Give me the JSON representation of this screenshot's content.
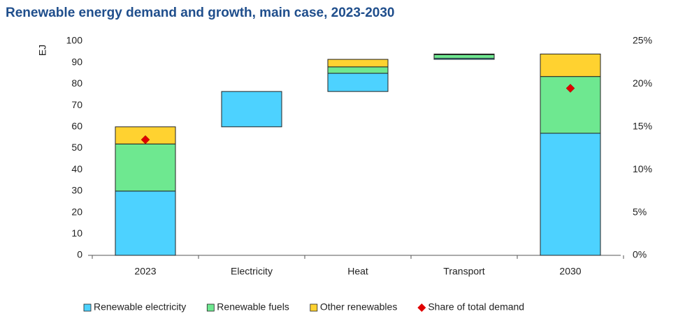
{
  "chart_data": {
    "type": "waterfall",
    "title": "Renewable energy demand and growth, main case, 2023-2030",
    "y_label": "EJ",
    "categories": [
      "2023",
      "Electricity",
      "Heat",
      "Transport",
      "2030"
    ],
    "series": [
      {
        "name": "Renewable electricity",
        "color": "#4dd2ff",
        "values": [
          30,
          16.5,
          8.5,
          0.5,
          57
        ]
      },
      {
        "name": "Renewable fuels",
        "color": "#6ee890",
        "values": [
          22,
          null,
          3,
          1.7,
          26.5
        ]
      },
      {
        "name": "Other renewables",
        "color": "#ffd230",
        "values": [
          8,
          null,
          3.5,
          0.3,
          10.5
        ]
      },
      {
        "name": "Share of total demand",
        "color": "#e00000",
        "axis": "y2",
        "values": [
          13.5,
          null,
          null,
          null,
          19.5
        ]
      }
    ],
    "ylim": [
      0,
      100
    ],
    "yticks": [
      0,
      10,
      20,
      30,
      40,
      50,
      60,
      70,
      80,
      90,
      100
    ],
    "y2lim": [
      0,
      25
    ],
    "y2ticks": [
      {
        "value": 0,
        "label": "0%"
      },
      {
        "value": 5,
        "label": "5%"
      },
      {
        "value": 10,
        "label": "10%"
      },
      {
        "value": 15,
        "label": "15%"
      },
      {
        "value": 20,
        "label": "20%"
      },
      {
        "value": 25,
        "label": "25%"
      }
    ],
    "grid": false,
    "legend": "bottom"
  }
}
